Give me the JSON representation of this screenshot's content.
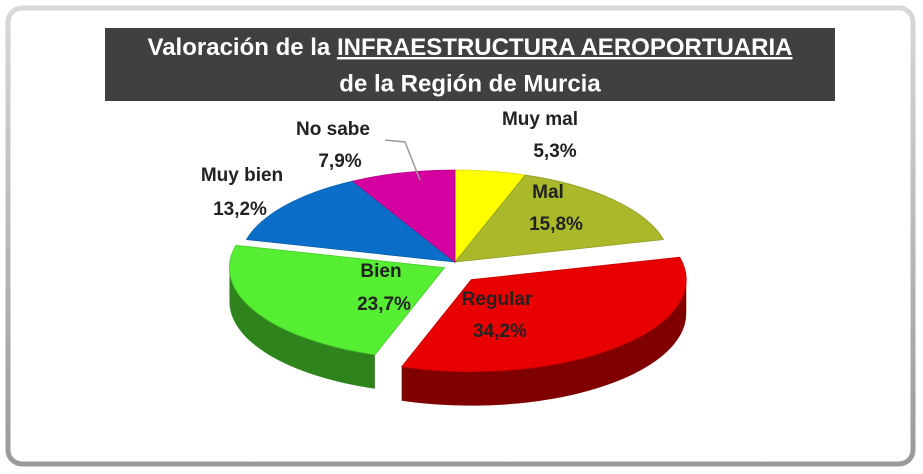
{
  "chart_data": {
    "type": "pie3d",
    "title": [
      [
        "Valoración de la ",
        "INFRAESTRUCTURA AEROPORTUARIA"
      ],
      [
        "de la Región de Murcia"
      ]
    ],
    "categories": [
      "Muy mal",
      "Mal",
      "Regular",
      "Bien",
      "Muy bien",
      "No sabe"
    ],
    "values": [
      5.3,
      15.8,
      34.2,
      23.7,
      13.2,
      7.9
    ],
    "value_labels": [
      "5,3%",
      "15,8%",
      "34,2%",
      "23,7%",
      "13,2%",
      "7,9%"
    ],
    "colors": [
      "#ffff00",
      "#aab82a",
      "#e80000",
      "#55ee33",
      "#0a6ec8",
      "#d400a0"
    ]
  }
}
